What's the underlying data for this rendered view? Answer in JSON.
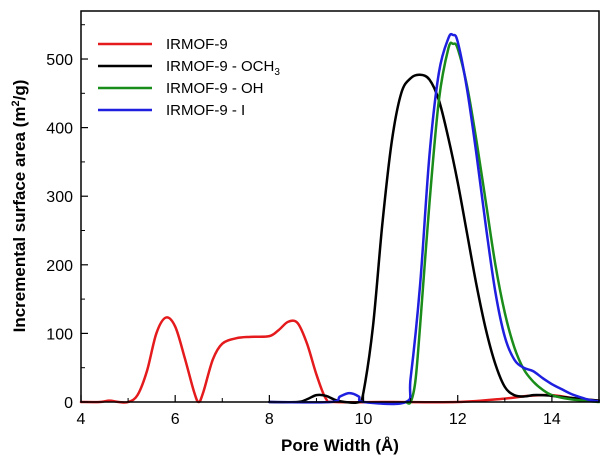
{
  "chart_data": {
    "type": "line",
    "xlabel": "Pore Width (Å)",
    "ylabel_main": "Incremental surface area (m",
    "ylabel_sup": "2",
    "ylabel_tail": "/g)",
    "xlim": [
      4,
      15
    ],
    "ylim": [
      0,
      570
    ],
    "x_ticks": [
      4,
      6,
      8,
      10,
      12,
      14
    ],
    "y_ticks": [
      0,
      100,
      200,
      300,
      400,
      500
    ],
    "grid": false,
    "legend_position": "top-left",
    "series": [
      {
        "name": "IRMOF-9",
        "subscript": "",
        "color": "#e41a1c",
        "points": [
          [
            4.0,
            0
          ],
          [
            4.4,
            0
          ],
          [
            4.6,
            2
          ],
          [
            4.8,
            0
          ],
          [
            5.0,
            0
          ],
          [
            5.2,
            10
          ],
          [
            5.4,
            45
          ],
          [
            5.6,
            100
          ],
          [
            5.8,
            123
          ],
          [
            6.0,
            110
          ],
          [
            6.2,
            65
          ],
          [
            6.4,
            15
          ],
          [
            6.5,
            0
          ],
          [
            6.6,
            15
          ],
          [
            6.8,
            62
          ],
          [
            7.0,
            85
          ],
          [
            7.3,
            93
          ],
          [
            7.6,
            95
          ],
          [
            8.0,
            96
          ],
          [
            8.2,
            105
          ],
          [
            8.4,
            117
          ],
          [
            8.6,
            115
          ],
          [
            8.8,
            85
          ],
          [
            9.0,
            40
          ],
          [
            9.2,
            5
          ],
          [
            9.4,
            0
          ],
          [
            10.6,
            0
          ],
          [
            12.0,
            0
          ],
          [
            13.0,
            5
          ],
          [
            13.5,
            9
          ],
          [
            14.0,
            10
          ],
          [
            14.5,
            5
          ],
          [
            15.0,
            2
          ]
        ]
      },
      {
        "name": "IRMOF-9 - OCH",
        "subscript": "3",
        "color": "#000000",
        "points": [
          [
            8.0,
            0
          ],
          [
            8.6,
            0
          ],
          [
            8.8,
            4
          ],
          [
            9.0,
            10
          ],
          [
            9.2,
            9
          ],
          [
            9.4,
            3
          ],
          [
            9.6,
            0
          ],
          [
            9.9,
            0
          ],
          [
            10.0,
            15
          ],
          [
            10.2,
            110
          ],
          [
            10.4,
            260
          ],
          [
            10.6,
            380
          ],
          [
            10.8,
            450
          ],
          [
            11.0,
            472
          ],
          [
            11.2,
            477
          ],
          [
            11.4,
            470
          ],
          [
            11.6,
            440
          ],
          [
            11.8,
            385
          ],
          [
            12.0,
            320
          ],
          [
            12.2,
            245
          ],
          [
            12.4,
            170
          ],
          [
            12.6,
            105
          ],
          [
            12.8,
            55
          ],
          [
            13.0,
            22
          ],
          [
            13.2,
            10
          ],
          [
            13.4,
            8
          ],
          [
            13.6,
            10
          ],
          [
            13.8,
            10
          ],
          [
            14.0,
            9
          ],
          [
            14.4,
            6
          ],
          [
            15.0,
            2
          ]
        ]
      },
      {
        "name": "IRMOF-9 - OH",
        "subscript": "",
        "color": "#1a8c1a",
        "points": [
          [
            10.9,
            0
          ],
          [
            11.0,
            0
          ],
          [
            11.1,
            30
          ],
          [
            11.2,
            110
          ],
          [
            11.4,
            290
          ],
          [
            11.6,
            440
          ],
          [
            11.8,
            515
          ],
          [
            11.9,
            522
          ],
          [
            12.0,
            515
          ],
          [
            12.2,
            460
          ],
          [
            12.4,
            380
          ],
          [
            12.6,
            290
          ],
          [
            12.8,
            200
          ],
          [
            13.0,
            130
          ],
          [
            13.2,
            80
          ],
          [
            13.4,
            48
          ],
          [
            13.6,
            30
          ],
          [
            13.8,
            18
          ],
          [
            14.0,
            10
          ],
          [
            14.4,
            4
          ],
          [
            15.0,
            0
          ]
        ]
      },
      {
        "name": "IRMOF-9 - I",
        "subscript": "",
        "color": "#1f1fe0",
        "points": [
          [
            8.0,
            0
          ],
          [
            9.3,
            0
          ],
          [
            9.5,
            8
          ],
          [
            9.7,
            13
          ],
          [
            9.9,
            8
          ],
          [
            10.0,
            0
          ],
          [
            10.9,
            0
          ],
          [
            11.0,
            35
          ],
          [
            11.2,
            170
          ],
          [
            11.4,
            360
          ],
          [
            11.6,
            480
          ],
          [
            11.8,
            530
          ],
          [
            11.9,
            535
          ],
          [
            12.0,
            525
          ],
          [
            12.2,
            455
          ],
          [
            12.4,
            360
          ],
          [
            12.6,
            255
          ],
          [
            12.8,
            160
          ],
          [
            13.0,
            95
          ],
          [
            13.2,
            62
          ],
          [
            13.4,
            50
          ],
          [
            13.6,
            45
          ],
          [
            13.8,
            35
          ],
          [
            14.0,
            26
          ],
          [
            14.2,
            19
          ],
          [
            14.4,
            12
          ],
          [
            14.6,
            7
          ],
          [
            14.8,
            3
          ],
          [
            15.0,
            1
          ]
        ]
      }
    ]
  }
}
